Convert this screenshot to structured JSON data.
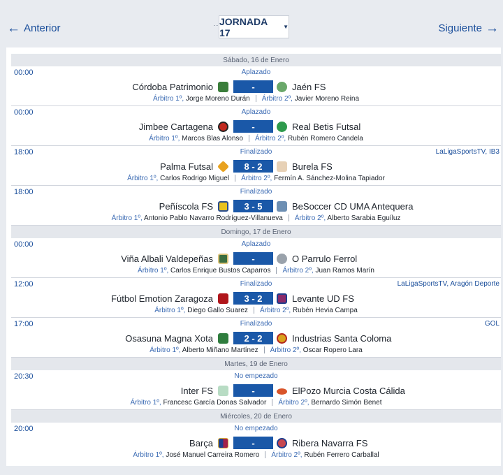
{
  "nav": {
    "prev_label": "Anterior",
    "next_label": "Siguiente",
    "prev_arrow": "←",
    "next_arrow": "→",
    "jornada_label": "JORNADA 17",
    "caret": "▼"
  },
  "labels": {
    "ref1": "Árbitro 1º,",
    "ref2": "Árbitro 2º,"
  },
  "days": [
    {
      "label": "Sábado, 16 de Enero"
    },
    {
      "label": "Domingo, 17 de Enero"
    },
    {
      "label": "Martes, 19 de Enero"
    },
    {
      "label": "Miércoles, 20 de Enero"
    }
  ],
  "matches": [
    {
      "time": "00:00",
      "status": "Aplazado",
      "tv": "",
      "home": "Córdoba Patrimonio",
      "away": "Jaén FS",
      "score": "-",
      "ref1": "Jorge Moreno Durán",
      "ref2": "Javier Moreno Reina",
      "home_icon": "cordoba-crest",
      "away_icon": "jaen-crest",
      "home_color": "#3a7d3a",
      "away_color": "#6aa86a"
    },
    {
      "time": "00:00",
      "status": "Aplazado",
      "tv": "",
      "home": "Jimbee Cartagena",
      "away": "Real Betis Futsal",
      "score": "-",
      "ref1": "Marcos Blas Alonso",
      "ref2": "Rubén Romero Candela",
      "home_icon": "cartagena-crest",
      "away_icon": "betis-crest",
      "home_color": "#c0281e",
      "away_color": "#2e9a4c"
    },
    {
      "time": "18:00",
      "status": "Finalizado",
      "tv": "LaLigaSportsTV, IB3",
      "home": "Palma Futsal",
      "away": "Burela FS",
      "score": "8 - 2",
      "ref1": "Carlos Rodrigo Miguel",
      "ref2": "Fermín A. Sánchez-Molina Tapiador",
      "home_icon": "palma-crest",
      "away_icon": "burela-crest",
      "home_color": "#e8a21f",
      "away_color": "#e7d1b6"
    },
    {
      "time": "18:00",
      "status": "Finalizado",
      "tv": "",
      "home": "Peñíscola FS",
      "away": "BeSoccer CD UMA Antequera",
      "score": "3 - 5",
      "ref1": "Antonio Pablo Navarro Rodríguez-Villanueva",
      "ref2": "Alberto Sarabia Eguíluz",
      "home_icon": "peniscola-crest",
      "away_icon": "antequera-crest",
      "home_color": "#e9c21f",
      "away_color": "#6d8fb3"
    },
    {
      "time": "00:00",
      "status": "Aplazado",
      "tv": "",
      "home": "Viña Albali Valdepeñas",
      "away": "O Parrulo Ferrol",
      "score": "-",
      "ref1": "Carlos Enrique Bustos Caparros",
      "ref2": "Juan Ramos Marín",
      "home_icon": "valdepenas-crest",
      "away_icon": "ferrol-crest",
      "home_color": "#3b6e3f",
      "away_color": "#9aa2ab"
    },
    {
      "time": "12:00",
      "status": "Finalizado",
      "tv": "LaLigaSportsTV, Aragón Deporte",
      "home": "Fútbol Emotion Zaragoza",
      "away": "Levante UD FS",
      "score": "3 - 2",
      "ref1": "Diego Gallo Suarez",
      "ref2": "Rubén Hevia Campa",
      "home_icon": "zaragoza-crest",
      "away_icon": "levante-crest",
      "home_color": "#b0161b",
      "away_color": "#8a2a6a"
    },
    {
      "time": "17:00",
      "status": "Finalizado",
      "tv": "GOL",
      "home": "Osasuna Magna Xota",
      "away": "Industrias Santa Coloma",
      "score": "2 - 2",
      "ref1": "Alberto Miñano Martínez",
      "ref2": "Oscar Ropero Lara",
      "home_icon": "osasuna-crest",
      "away_icon": "santacoloma-crest",
      "home_color": "#2f7d3e",
      "away_color": "#d9a11c"
    },
    {
      "time": "20:30",
      "status": "No empezado",
      "tv": "",
      "home": "Inter FS",
      "away": "ElPozo Murcia Costa Cálida",
      "score": "-",
      "ref1": "Francesc García Donas Salvador",
      "ref2": "Bernardo Simón Benet",
      "home_icon": "inter-crest",
      "away_icon": "elpozo-crest",
      "home_color": "#b8dcc4",
      "away_color": "#d9552a"
    },
    {
      "time": "20:00",
      "status": "No empezado",
      "tv": "",
      "home": "Barça",
      "away": "Ribera Navarra FS",
      "score": "-",
      "ref1": "José Manuel Carreira Romero",
      "ref2": "Rubén Ferrero Carballal",
      "home_icon": "barca-crest",
      "away_icon": "ribera-crest",
      "home_color": "#a3234a",
      "away_color": "#c7474f"
    }
  ]
}
